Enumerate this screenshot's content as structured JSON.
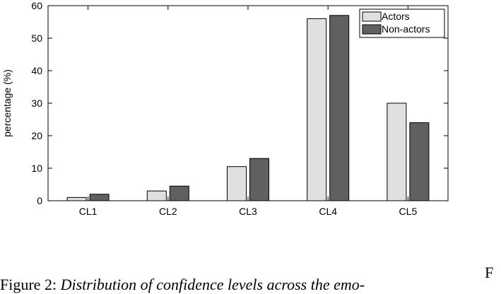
{
  "chart_data": {
    "type": "bar",
    "categories": [
      "CL1",
      "CL2",
      "CL3",
      "CL4",
      "CL5"
    ],
    "series": [
      {
        "name": "Actors",
        "values": [
          1,
          3,
          10.5,
          56,
          30
        ],
        "color": "#e0e0e0"
      },
      {
        "name": "Non-actors",
        "values": [
          2,
          4.5,
          13,
          57,
          24
        ],
        "color": "#606060"
      }
    ],
    "ylabel": "percentage (%)",
    "xlabel": "",
    "ylim": [
      0,
      60
    ],
    "yticks": [
      0,
      10,
      20,
      30,
      40,
      50,
      60
    ],
    "grid": false,
    "legend_position": "top-right"
  },
  "caption": {
    "prefix": "Figure 2: ",
    "text": "Distribution of confidence levels across the emo-"
  },
  "edge_text": "F"
}
